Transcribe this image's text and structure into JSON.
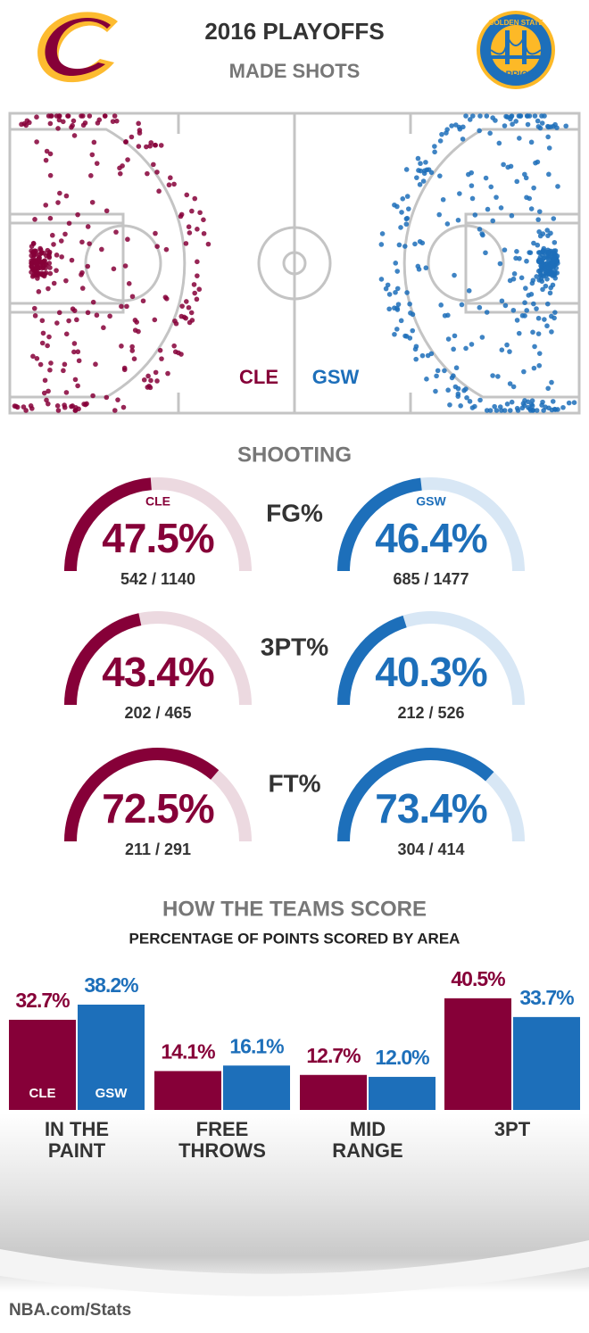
{
  "header": {
    "title": "2016 PLAYOFFS",
    "subtitle": "MADE SHOTS",
    "logo_text": [
      "GOLDEN STATE",
      "WARRIORS"
    ]
  },
  "footer": "NBA.com/Stats",
  "chart_data": [
    {
      "type": "gauge",
      "title": "SHOOTING",
      "teams": [
        {
          "name": "CLE",
          "color": "#860038",
          "track": "#ecd9e0"
        },
        {
          "name": "GSW",
          "color": "#1d6fba",
          "track": "#d8e7f5"
        }
      ],
      "rows": [
        {
          "label": "FG%",
          "values": [
            47.5,
            46.4
          ],
          "value_labels": [
            "47.5%",
            "46.4%"
          ],
          "shots": [
            "542 / 1140",
            "685 / 1477"
          ]
        },
        {
          "label": "3PT%",
          "values": [
            43.4,
            40.3
          ],
          "value_labels": [
            "43.4%",
            "40.3%"
          ],
          "shots": [
            "202 / 465",
            "212 / 526"
          ]
        },
        {
          "label": "FT%",
          "values": [
            72.5,
            73.4
          ],
          "value_labels": [
            "72.5%",
            "73.4%"
          ],
          "shots": [
            "211 / 291",
            "304 / 414"
          ]
        }
      ]
    },
    {
      "type": "bar",
      "title": "HOW THE TEAMS SCORE",
      "subtitle": "PERCENTAGE OF POINTS SCORED BY AREA",
      "categories": [
        "IN THE PAINT",
        "FREE THROWS",
        "MID RANGE",
        "3PT"
      ],
      "series": [
        {
          "name": "CLE",
          "color": "#860038",
          "values": [
            32.7,
            14.1,
            12.7,
            40.5
          ],
          "value_labels": [
            "32.7%",
            "14.1%",
            "12.7%",
            "40.5%"
          ]
        },
        {
          "name": "GSW",
          "color": "#1d6fba",
          "values": [
            38.2,
            16.1,
            12.0,
            33.7
          ],
          "value_labels": [
            "38.2%",
            "16.1%",
            "12.0%",
            "33.7%"
          ]
        }
      ]
    }
  ]
}
